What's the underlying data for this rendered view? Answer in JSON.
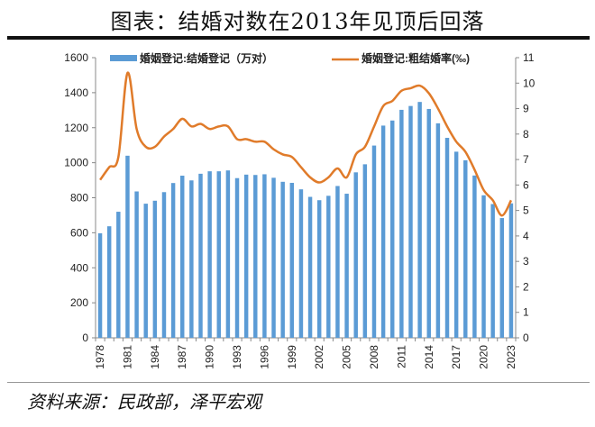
{
  "title": "图表：结婚对数在2013年见顶后回落",
  "source": "资料来源：民政部，泽平宏观",
  "chart_data": {
    "type": "bar+line",
    "categories": [
      1978,
      1979,
      1980,
      1981,
      1982,
      1983,
      1984,
      1985,
      1986,
      1987,
      1988,
      1989,
      1990,
      1991,
      1992,
      1993,
      1994,
      1995,
      1996,
      1997,
      1998,
      1999,
      2000,
      2001,
      2002,
      2003,
      2004,
      2005,
      2006,
      2007,
      2008,
      2009,
      2010,
      2011,
      2012,
      2013,
      2014,
      2015,
      2016,
      2017,
      2018,
      2019,
      2020,
      2021,
      2022,
      2023
    ],
    "xtick_labels": [
      "1978",
      "1981",
      "1984",
      "1987",
      "1990",
      "1993",
      "1996",
      "1999",
      "2002",
      "2005",
      "2008",
      "2011",
      "2014",
      "2017",
      "2020",
      "2023"
    ],
    "series": [
      {
        "name": "婚姻登记:结婚登记（万对）",
        "type": "bar",
        "axis": "left",
        "color": "#5b9bd5",
        "values": [
          597,
          637,
          720,
          1040,
          836,
          766,
          783,
          832,
          884,
          926,
          899,
          937,
          951,
          951,
          956,
          912,
          932,
          930,
          934,
          914,
          891,
          885,
          848,
          805,
          786,
          811,
          867,
          823,
          945,
          991,
          1098,
          1212,
          1241,
          1302,
          1324,
          1347,
          1307,
          1225,
          1142,
          1063,
          1014,
          927,
          814,
          764,
          684,
          768
        ]
      },
      {
        "name": "婚姻登记:粗结婚率(‰)",
        "type": "line",
        "axis": "right",
        "color": "#e07b2a",
        "values": [
          6.2,
          6.7,
          7.1,
          10.4,
          8.2,
          7.5,
          7.5,
          7.9,
          8.2,
          8.6,
          8.3,
          8.4,
          8.2,
          8.3,
          8.3,
          7.8,
          7.8,
          7.7,
          7.7,
          7.4,
          7.2,
          7.1,
          6.7,
          6.3,
          6.1,
          6.3,
          6.65,
          6.3,
          7.2,
          7.5,
          8.3,
          9.1,
          9.3,
          9.7,
          9.8,
          9.9,
          9.6,
          9.0,
          8.3,
          7.7,
          7.3,
          6.6,
          5.8,
          5.4,
          4.8,
          5.4
        ]
      }
    ],
    "y_left": {
      "range": [
        0,
        1600
      ],
      "ticks": [
        "0",
        "200",
        "400",
        "600",
        "800",
        "1000",
        "1200",
        "1400",
        "1600"
      ]
    },
    "y_right": {
      "range": [
        0,
        11
      ],
      "ticks": [
        "0",
        "1",
        "2",
        "3",
        "4",
        "5",
        "6",
        "7",
        "8",
        "9",
        "10",
        "11"
      ]
    },
    "grid": false,
    "legend_placement": "top"
  }
}
